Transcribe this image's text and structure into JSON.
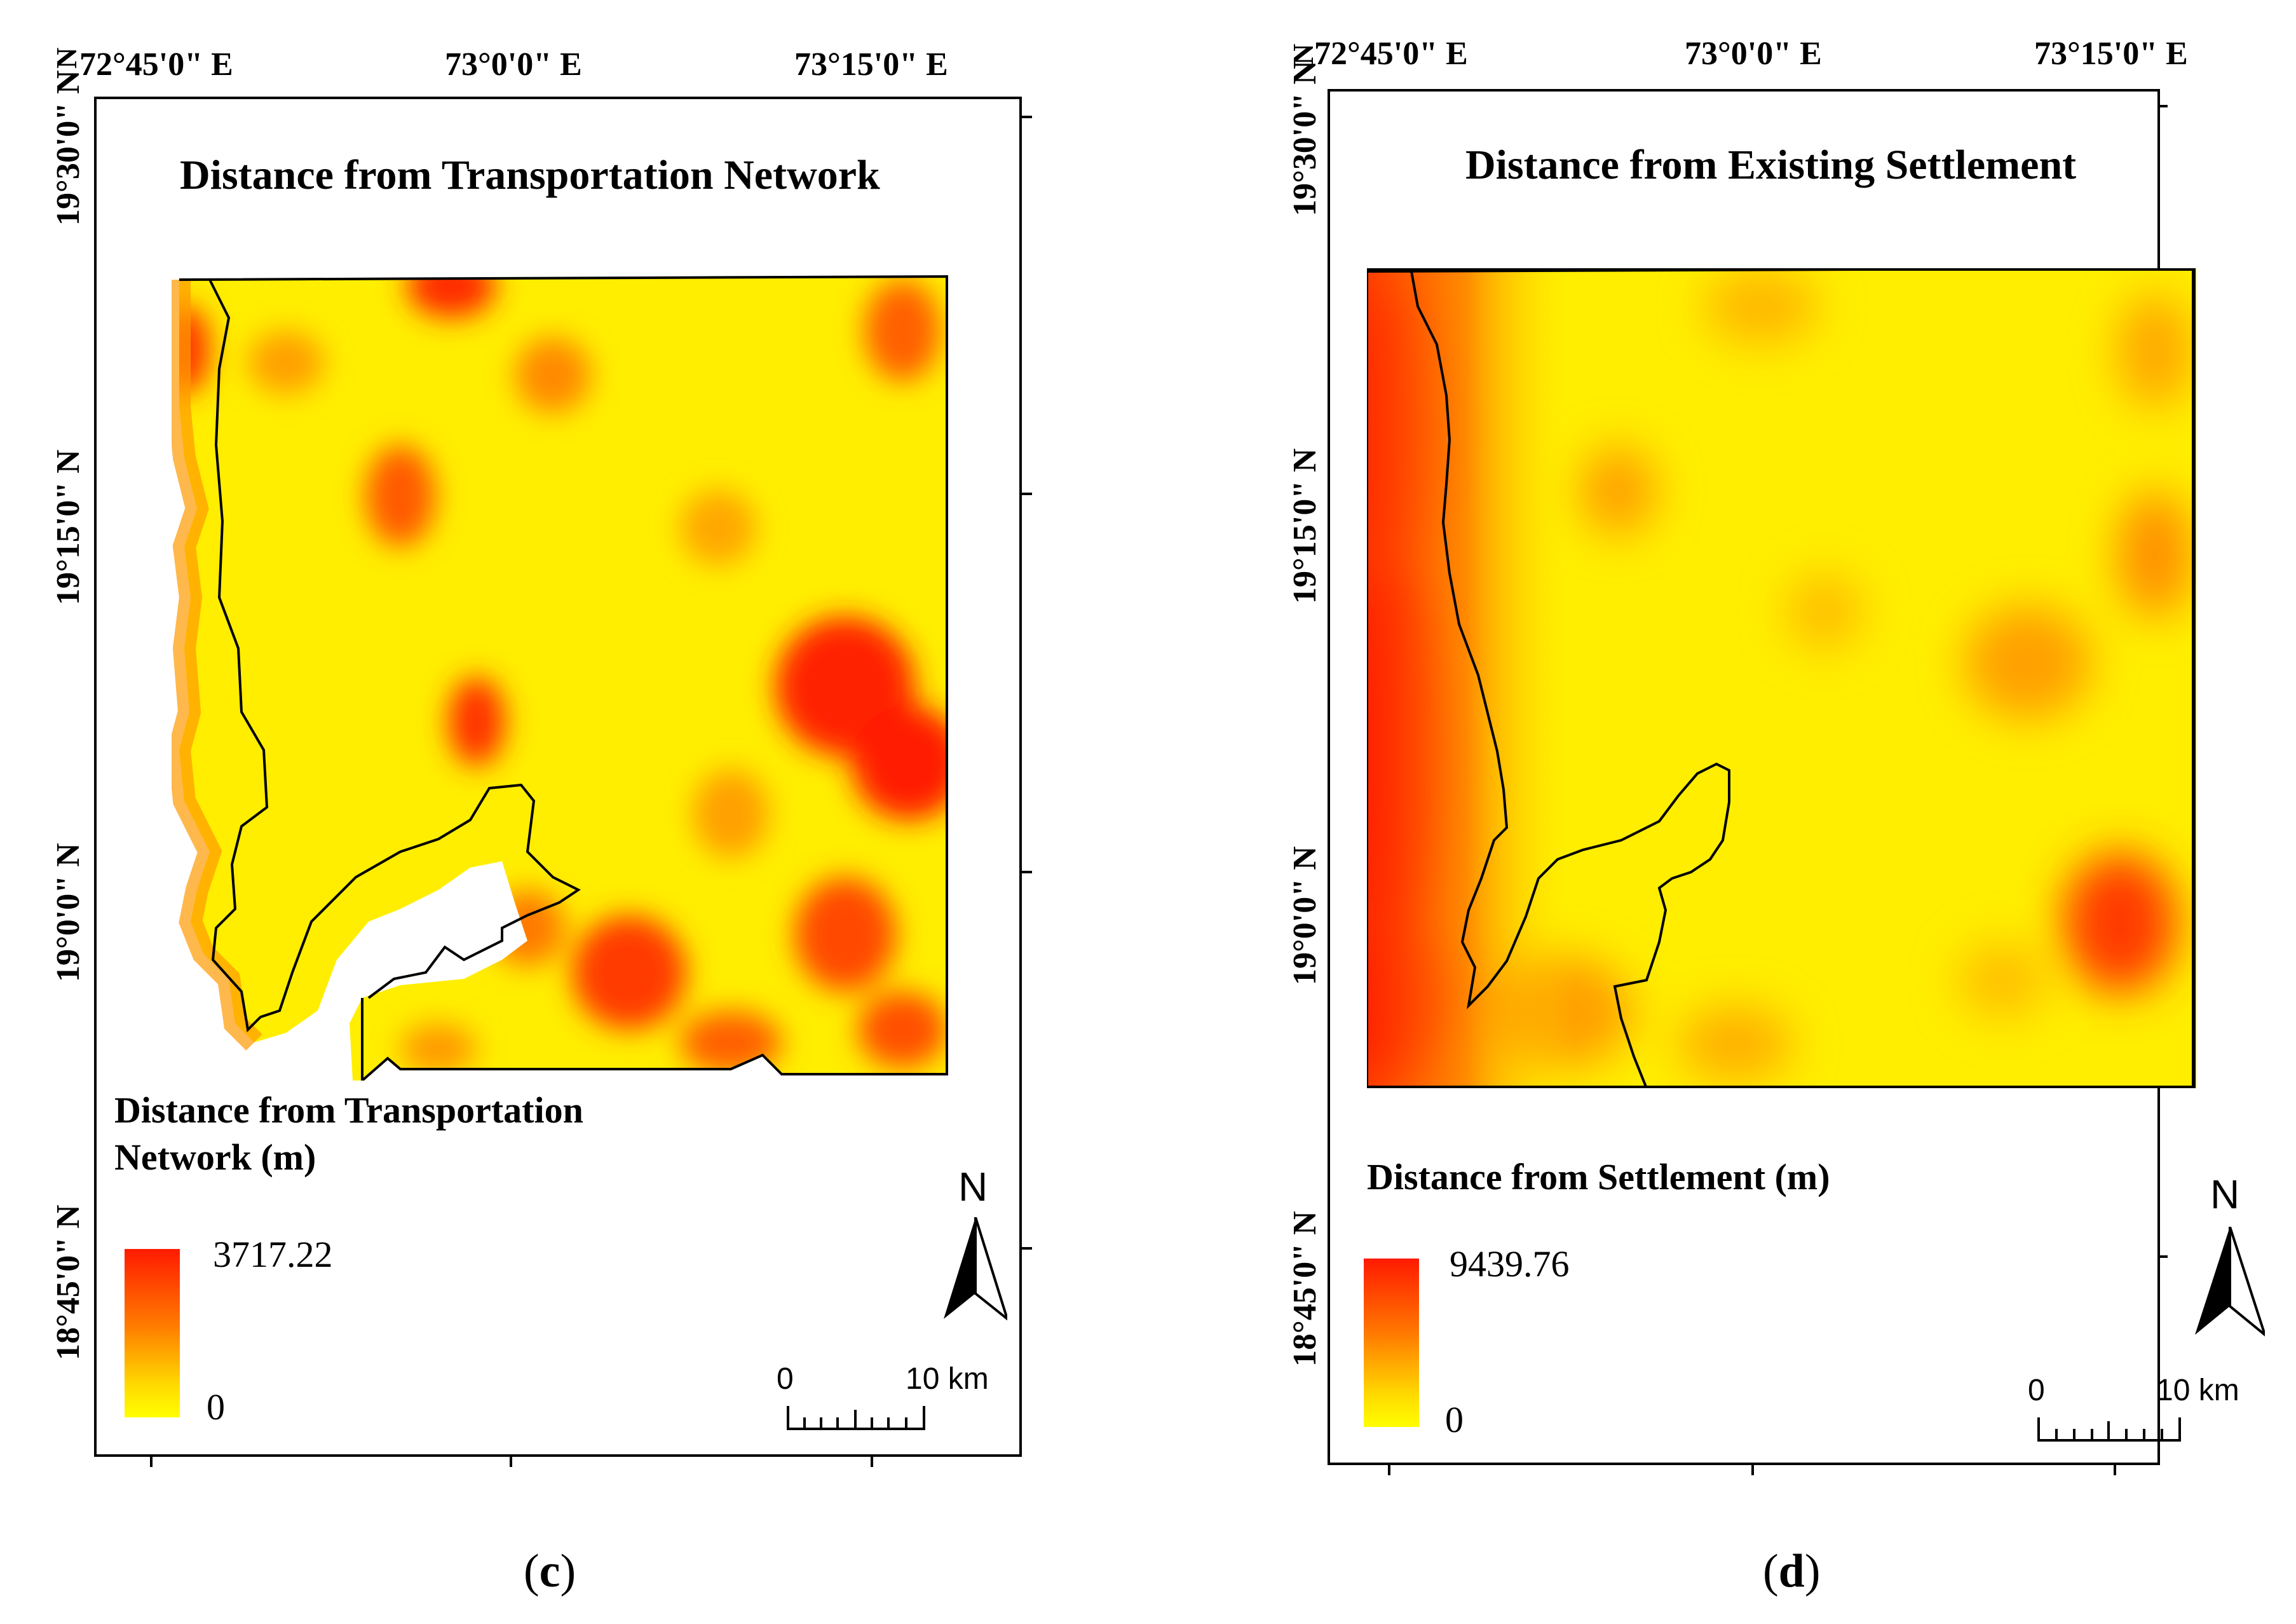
{
  "panel_c": {
    "title": "Distance from Transportation Network",
    "lon_labels": [
      "72°45'0\" E",
      "73°0'0\" E",
      "73°15'0\" E"
    ],
    "lat_labels": [
      "19°30'0\" N",
      "19°15'0\" N",
      "19°0'0\" N",
      "18°45'0\" N"
    ],
    "legend": {
      "title_line1": "Distance from Transportation",
      "title_line2": "Network (m)",
      "max": "3717.22",
      "min": "0",
      "colors": {
        "high": "#ff1a00",
        "low": "#ffff00"
      }
    },
    "north": "N",
    "scale": {
      "start": "0",
      "end": "10 km"
    },
    "caption_open": "(",
    "caption_letter": "c",
    "caption_close": ")"
  },
  "panel_d": {
    "title": "Distance from Existing Settlement",
    "lon_labels": [
      "72°45'0\" E",
      "73°0'0\" E",
      "73°15'0\" E"
    ],
    "lat_labels": [
      "19°30'0\" N",
      "19°15'0\" N",
      "19°0'0\" N",
      "18°45'0\" N"
    ],
    "legend": {
      "title": "Distance from Settlement (m)",
      "max": "9439.76",
      "min": "0",
      "colors": {
        "high": "#ff1a00",
        "low": "#ffff00"
      }
    },
    "north": "N",
    "scale": {
      "start": "0",
      "end": "10 km"
    },
    "caption_open": "(",
    "caption_letter": "d",
    "caption_close": ")"
  }
}
